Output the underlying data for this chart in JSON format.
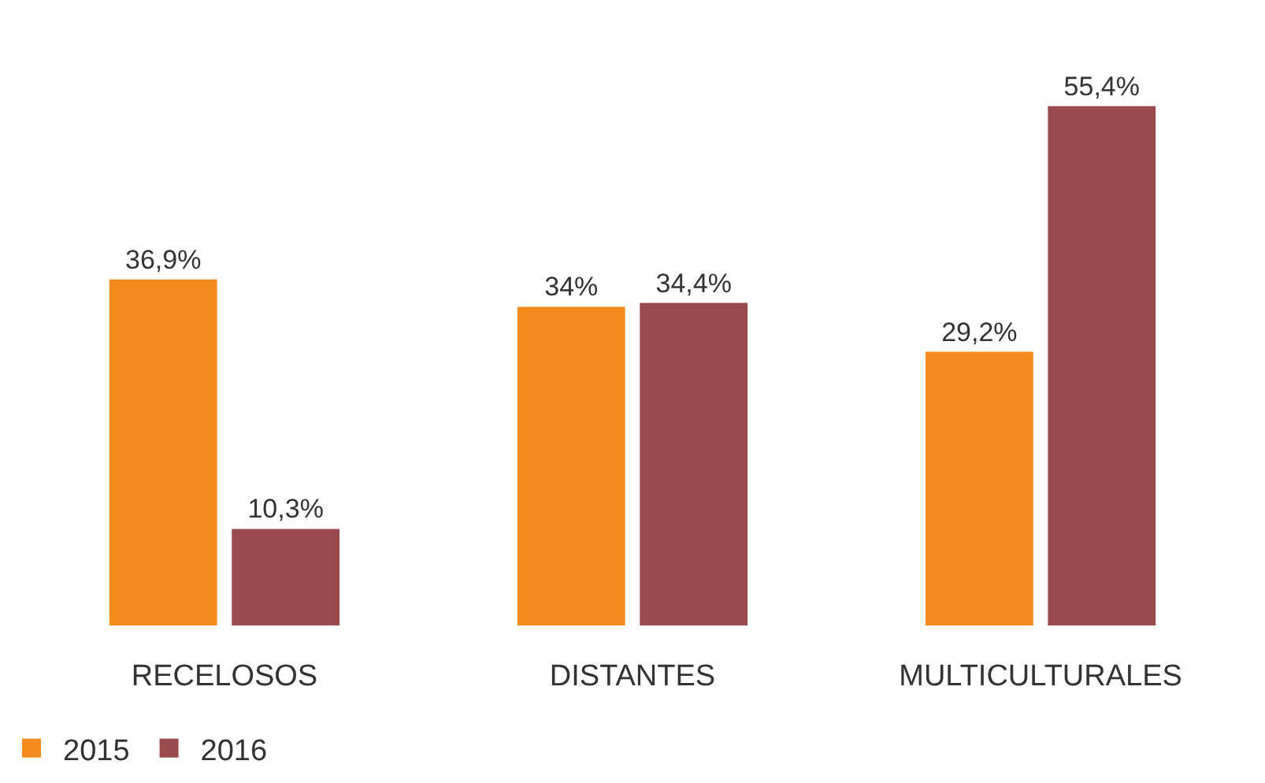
{
  "chart_data": {
    "type": "bar",
    "categories": [
      "RECELOSOS",
      "DISTANTES",
      "MULTICULTURALES"
    ],
    "series": [
      {
        "name": "2015",
        "color": "#f58a1f",
        "values": [
          36.9,
          34,
          29.2
        ],
        "value_labels": [
          "36,9%",
          "34%",
          "29,2%"
        ]
      },
      {
        "name": "2016",
        "color": "#9a4a4c",
        "values": [
          10.3,
          34.4,
          55.4
        ],
        "value_labels": [
          "10,3%",
          "34,4%",
          "55,4%"
        ]
      }
    ],
    "legend": "bottom left"
  }
}
